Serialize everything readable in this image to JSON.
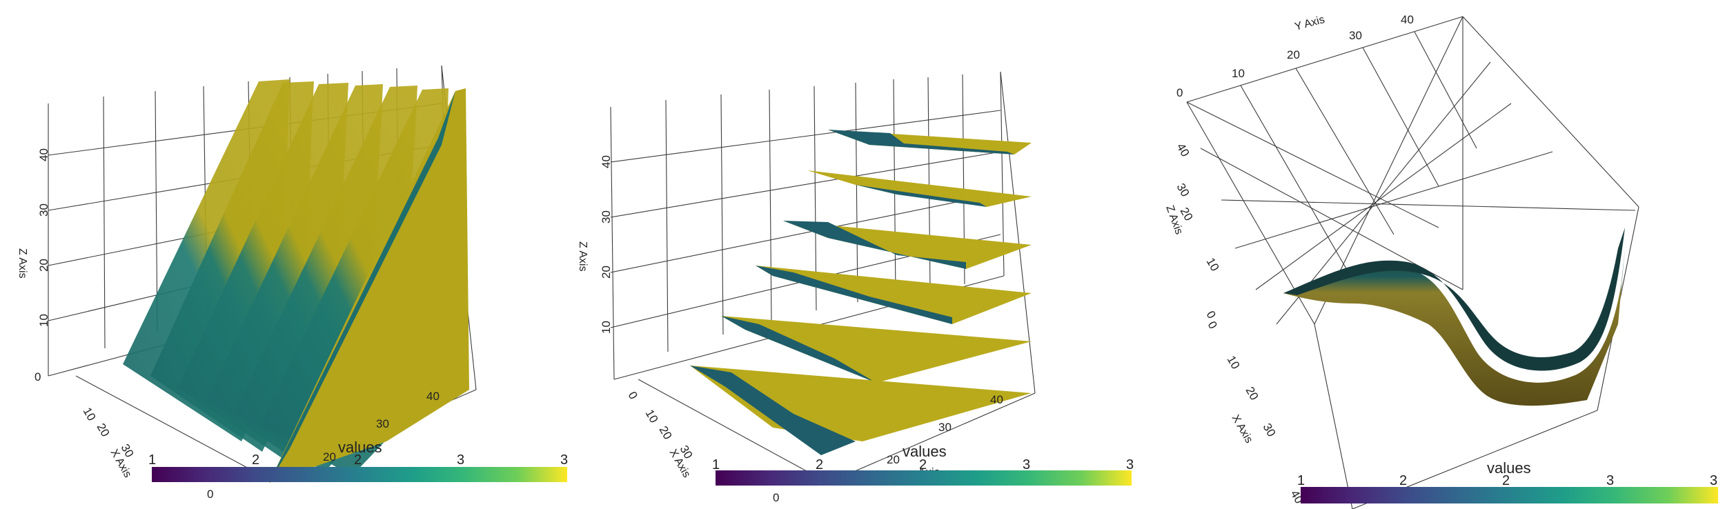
{
  "chart_data": [
    {
      "type": "3d-surface",
      "zlabel": "Z Axis",
      "xlabel": "X Axis",
      "z_ticks": [
        "0",
        "10",
        "20",
        "30",
        "40"
      ],
      "x_ticks": [
        "10",
        "20",
        "30"
      ],
      "y_ticks": [
        "20",
        "30",
        "40"
      ],
      "colorbar": {
        "title": "values",
        "labels": [
          "1",
          "2",
          "2",
          "3",
          "3"
        ],
        "sublabel": "0",
        "colormap": "viridis"
      },
      "slices": {
        "orientation": "vertical",
        "count": 7
      }
    },
    {
      "type": "3d-surface",
      "zlabel": "Z Axis",
      "xlabel": "X Axis",
      "ylabel_partial": "Axis",
      "z_ticks": [
        "10",
        "20",
        "30",
        "40"
      ],
      "x_ticks": [
        "0",
        "10",
        "20",
        "30"
      ],
      "y_ticks": [
        "20",
        "30",
        "40"
      ],
      "colorbar": {
        "title": "values",
        "labels": [
          "1",
          "2",
          "2",
          "3",
          "3"
        ],
        "sublabel": "0",
        "colormap": "viridis"
      },
      "slices": {
        "orientation": "horizontal",
        "count": 6
      }
    },
    {
      "type": "3d-surface",
      "ylabel": "Y Axis",
      "zlabel": "Z Axis",
      "xlabel": "X Axis",
      "y_ticks": [
        "0",
        "10",
        "20",
        "30",
        "40"
      ],
      "z_ticks": [
        "0",
        "10",
        "20",
        "30",
        "40"
      ],
      "x_ticks": [
        "0",
        "10",
        "20",
        "30",
        "40"
      ],
      "colorbar": {
        "title": "values",
        "labels": [
          "1",
          "2",
          "2",
          "3",
          "3"
        ],
        "colormap": "viridis"
      },
      "surface": {
        "shape": "S-curve isosurface"
      }
    }
  ]
}
